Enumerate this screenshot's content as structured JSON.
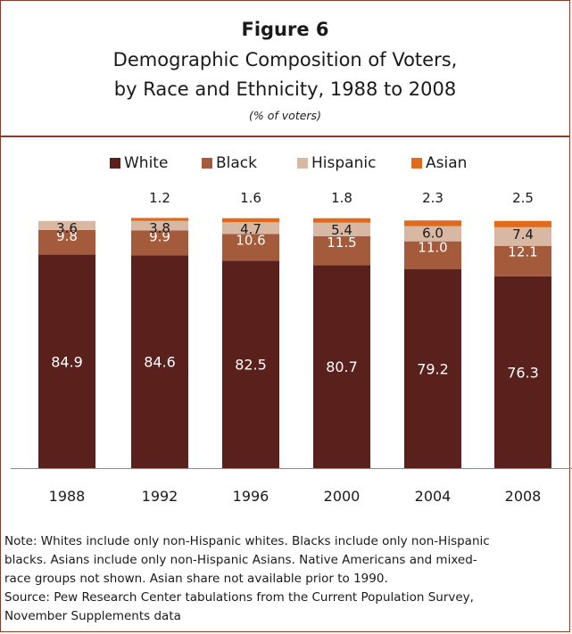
{
  "figure": {
    "label": "Figure 6",
    "title_line1": "Demographic Composition of Voters,",
    "title_line2": "by Race and Ethnicity, 1988 to 2008",
    "subtitle": "(% of voters)"
  },
  "colors": {
    "white": "#5a201b",
    "black": "#a35b3c",
    "hispanic": "#d9b8a3",
    "asian": "#e06a1b",
    "border": "#8c3b2b"
  },
  "chart_data": {
    "type": "bar",
    "stacked": true,
    "categories": [
      "1988",
      "1992",
      "1996",
      "2000",
      "2004",
      "2008"
    ],
    "series": [
      {
        "name": "White",
        "values": [
          84.9,
          84.6,
          82.5,
          80.7,
          79.2,
          76.3
        ]
      },
      {
        "name": "Black",
        "values": [
          9.8,
          9.9,
          10.6,
          11.5,
          11.0,
          12.1
        ]
      },
      {
        "name": "Hispanic",
        "values": [
          3.6,
          3.8,
          4.7,
          5.4,
          6.0,
          7.4
        ]
      },
      {
        "name": "Asian",
        "values": [
          null,
          1.2,
          1.6,
          1.8,
          2.3,
          2.5
        ]
      }
    ],
    "legend": "top",
    "grid": false,
    "ylim": [
      0,
      100
    ]
  },
  "notes": {
    "line1": "Note: Whites include only non-Hispanic whites.  Blacks include only non-Hispanic",
    "line2": "blacks. Asians include only non-Hispanic Asians. Native Americans and mixed-",
    "line3": "race groups not shown. Asian share not available prior to 1990.",
    "line4": "Source: Pew Research Center tabulations from the Current Population Survey,",
    "line5": "November Supplements data"
  }
}
